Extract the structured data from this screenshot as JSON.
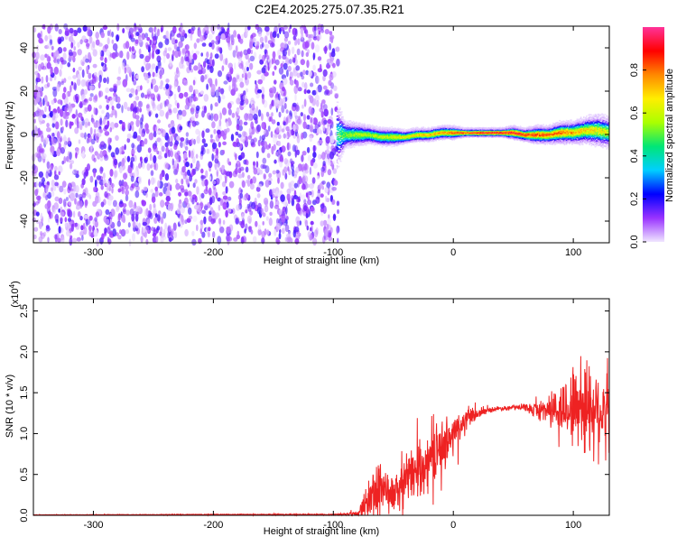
{
  "title": "C2E4.2025.275.07.35.R21",
  "chart_data": [
    {
      "type": "heatmap",
      "name": "spectrogram",
      "xlabel": "Height of straight line (km)",
      "ylabel": "Frequency (Hz)",
      "xlim": [
        -350,
        130
      ],
      "ylim": [
        -50,
        50
      ],
      "x_ticks": [
        -300,
        -200,
        -100,
        0,
        100
      ],
      "x_tick_labels": [
        "-300",
        "-200",
        "-100",
        "0",
        "100"
      ],
      "y_ticks": [
        -40,
        -20,
        0,
        20,
        40
      ],
      "y_tick_labels": [
        "-40",
        "-20",
        "0",
        "20",
        "40"
      ],
      "noise_region": {
        "x_range": [
          -350,
          -96
        ],
        "freq_range": [
          -50,
          50
        ],
        "amplitude_range": [
          0.0,
          0.18
        ]
      },
      "signal_band": {
        "x": [
          -97,
          -90,
          -80,
          -70,
          -60,
          -50,
          -40,
          -30,
          -20,
          -10,
          0,
          10,
          20,
          30,
          40,
          50,
          60,
          70,
          80,
          90,
          100,
          110,
          120,
          130
        ],
        "center_freq": [
          0,
          0,
          0,
          0,
          -1,
          -1,
          -1,
          0,
          0,
          1,
          1,
          1,
          1,
          1,
          1,
          1,
          0,
          0,
          0,
          1,
          1,
          2,
          2,
          1
        ],
        "half_width": [
          15,
          6,
          5,
          4,
          4,
          4,
          3,
          3,
          3,
          3,
          3,
          2,
          2,
          2,
          2,
          3,
          3,
          4,
          4,
          5,
          5,
          6,
          7,
          7
        ],
        "peak_amplitude": [
          0.45,
          0.55,
          0.6,
          0.6,
          0.62,
          0.65,
          0.7,
          0.72,
          0.75,
          0.8,
          0.85,
          0.9,
          0.95,
          0.98,
          0.98,
          0.95,
          0.9,
          0.88,
          0.85,
          0.82,
          0.78,
          0.72,
          0.68,
          0.65
        ]
      }
    },
    {
      "type": "colorbar",
      "name": "amplitude-colorbar",
      "label": "Normalized spectral amplitude",
      "range": [
        0.0,
        1.0
      ],
      "ticks": [
        0.0,
        0.2,
        0.4,
        0.6,
        0.8
      ],
      "tick_labels": [
        "0.0",
        "0.2",
        "0.4",
        "0.6",
        "0.8"
      ],
      "colormap": [
        "#f0e6ff",
        "#9933ff",
        "#0000ff",
        "#00cfff",
        "#00e676",
        "#aaff00",
        "#ffee00",
        "#ff8800",
        "#ff0000",
        "#ff3399"
      ]
    },
    {
      "type": "line",
      "name": "snr",
      "xlabel": "Height of straight line (km)",
      "ylabel": "SNR (10 * v/v)",
      "scale_label_base": "(x10",
      "scale_label_exp": "4",
      "scale_label_end": ")",
      "xlim": [
        -350,
        130
      ],
      "ylim": [
        0.0,
        2.65
      ],
      "x_ticks": [
        -300,
        -200,
        -100,
        0,
        100
      ],
      "x_tick_labels": [
        "-300",
        "-200",
        "-100",
        "0",
        "100"
      ],
      "y_ticks": [
        0.0,
        0.5,
        1.0,
        1.5,
        2.0,
        2.5
      ],
      "y_tick_labels": [
        "0.0",
        "0.5",
        "1.0",
        "1.5",
        "2.0",
        "2.5"
      ],
      "series": [
        {
          "name": "SNR",
          "color": "#ee2222",
          "x": [
            -350,
            -200,
            -100,
            -80,
            -75,
            -70,
            -65,
            -60,
            -55,
            -50,
            -45,
            -40,
            -30,
            -20,
            -10,
            0,
            10,
            20,
            30,
            40,
            50,
            60,
            70,
            80,
            90,
            100,
            110,
            120,
            130
          ],
          "mean": [
            0.005,
            0.01,
            0.01,
            0.02,
            0.1,
            0.2,
            0.3,
            0.4,
            0.28,
            0.25,
            0.32,
            0.42,
            0.55,
            0.7,
            0.85,
            1.0,
            1.15,
            1.24,
            1.29,
            1.31,
            1.32,
            1.32,
            1.28,
            1.3,
            1.3,
            1.34,
            1.35,
            1.3,
            1.3
          ],
          "amplitude": [
            0.003,
            0.005,
            0.008,
            0.03,
            0.15,
            0.25,
            0.35,
            0.45,
            0.25,
            0.2,
            0.25,
            0.3,
            0.3,
            0.3,
            0.3,
            0.25,
            0.15,
            0.05,
            0.03,
            0.03,
            0.03,
            0.04,
            0.1,
            0.2,
            0.3,
            0.5,
            0.6,
            0.55,
            0.5
          ]
        }
      ]
    }
  ]
}
